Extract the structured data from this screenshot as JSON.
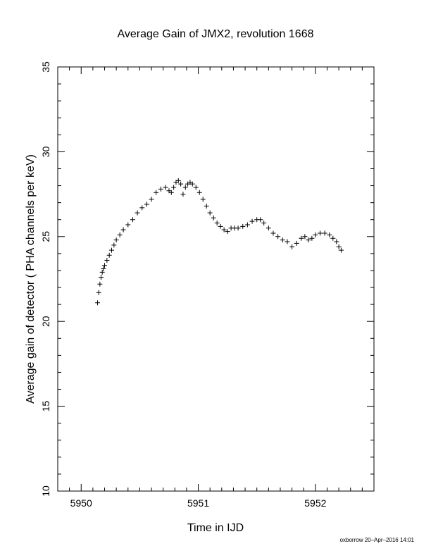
{
  "footer": "oxborrow 20–Apr–2016 14:01",
  "chart_data": {
    "type": "scatter",
    "marker": "plus",
    "title": "Average Gain of JMX2, revolution 1668",
    "xlabel": "Time in IJD",
    "ylabel": "Average gain of detector ( PHA channels per keV)",
    "xlim": [
      5949.8,
      5952.5
    ],
    "ylim": [
      10,
      35
    ],
    "xticks": [
      5950,
      5951,
      5952
    ],
    "yticks": [
      10,
      15,
      20,
      25,
      30,
      35
    ],
    "grid": false,
    "series": [
      {
        "values_note_free": true,
        "x": [
          5950.14,
          5950.15,
          5950.16,
          5950.17,
          5950.18,
          5950.19,
          5950.2,
          5950.22,
          5950.24,
          5950.26,
          5950.28,
          5950.3,
          5950.33,
          5950.36,
          5950.4,
          5950.44,
          5950.48,
          5950.52,
          5950.56,
          5950.6,
          5950.64,
          5950.68,
          5950.72,
          5950.75,
          5950.77,
          5950.79,
          5950.81,
          5950.83,
          5950.85,
          5950.87,
          5950.89,
          5950.91,
          5950.93,
          5950.95,
          5950.98,
          5951.01,
          5951.04,
          5951.07,
          5951.1,
          5951.13,
          5951.16,
          5951.19,
          5951.22,
          5951.25,
          5951.28,
          5951.31,
          5951.34,
          5951.38,
          5951.42,
          5951.46,
          5951.5,
          5951.53,
          5951.56,
          5951.6,
          5951.64,
          5951.68,
          5951.72,
          5951.76,
          5951.8,
          5951.84,
          5951.88,
          5951.91,
          5951.94,
          5951.97,
          5952.0,
          5952.04,
          5952.08,
          5952.12,
          5952.15,
          5952.18,
          5952.2,
          5952.22
        ],
        "y": [
          21.1,
          21.7,
          22.2,
          22.6,
          22.9,
          23.1,
          23.3,
          23.6,
          23.9,
          24.2,
          24.5,
          24.8,
          25.1,
          25.4,
          25.7,
          26.0,
          26.4,
          26.7,
          26.9,
          27.2,
          27.6,
          27.8,
          27.9,
          27.7,
          27.6,
          27.9,
          28.2,
          28.3,
          28.1,
          27.5,
          27.9,
          28.1,
          28.2,
          28.1,
          27.9,
          27.6,
          27.2,
          26.8,
          26.4,
          26.1,
          25.8,
          25.6,
          25.4,
          25.3,
          25.5,
          25.5,
          25.5,
          25.6,
          25.7,
          25.9,
          26.0,
          26.0,
          25.8,
          25.5,
          25.2,
          25.0,
          24.8,
          24.7,
          24.4,
          24.6,
          24.9,
          25.0,
          24.8,
          24.9,
          25.1,
          25.2,
          25.2,
          25.1,
          24.9,
          24.7,
          24.4,
          24.2
        ]
      }
    ]
  }
}
